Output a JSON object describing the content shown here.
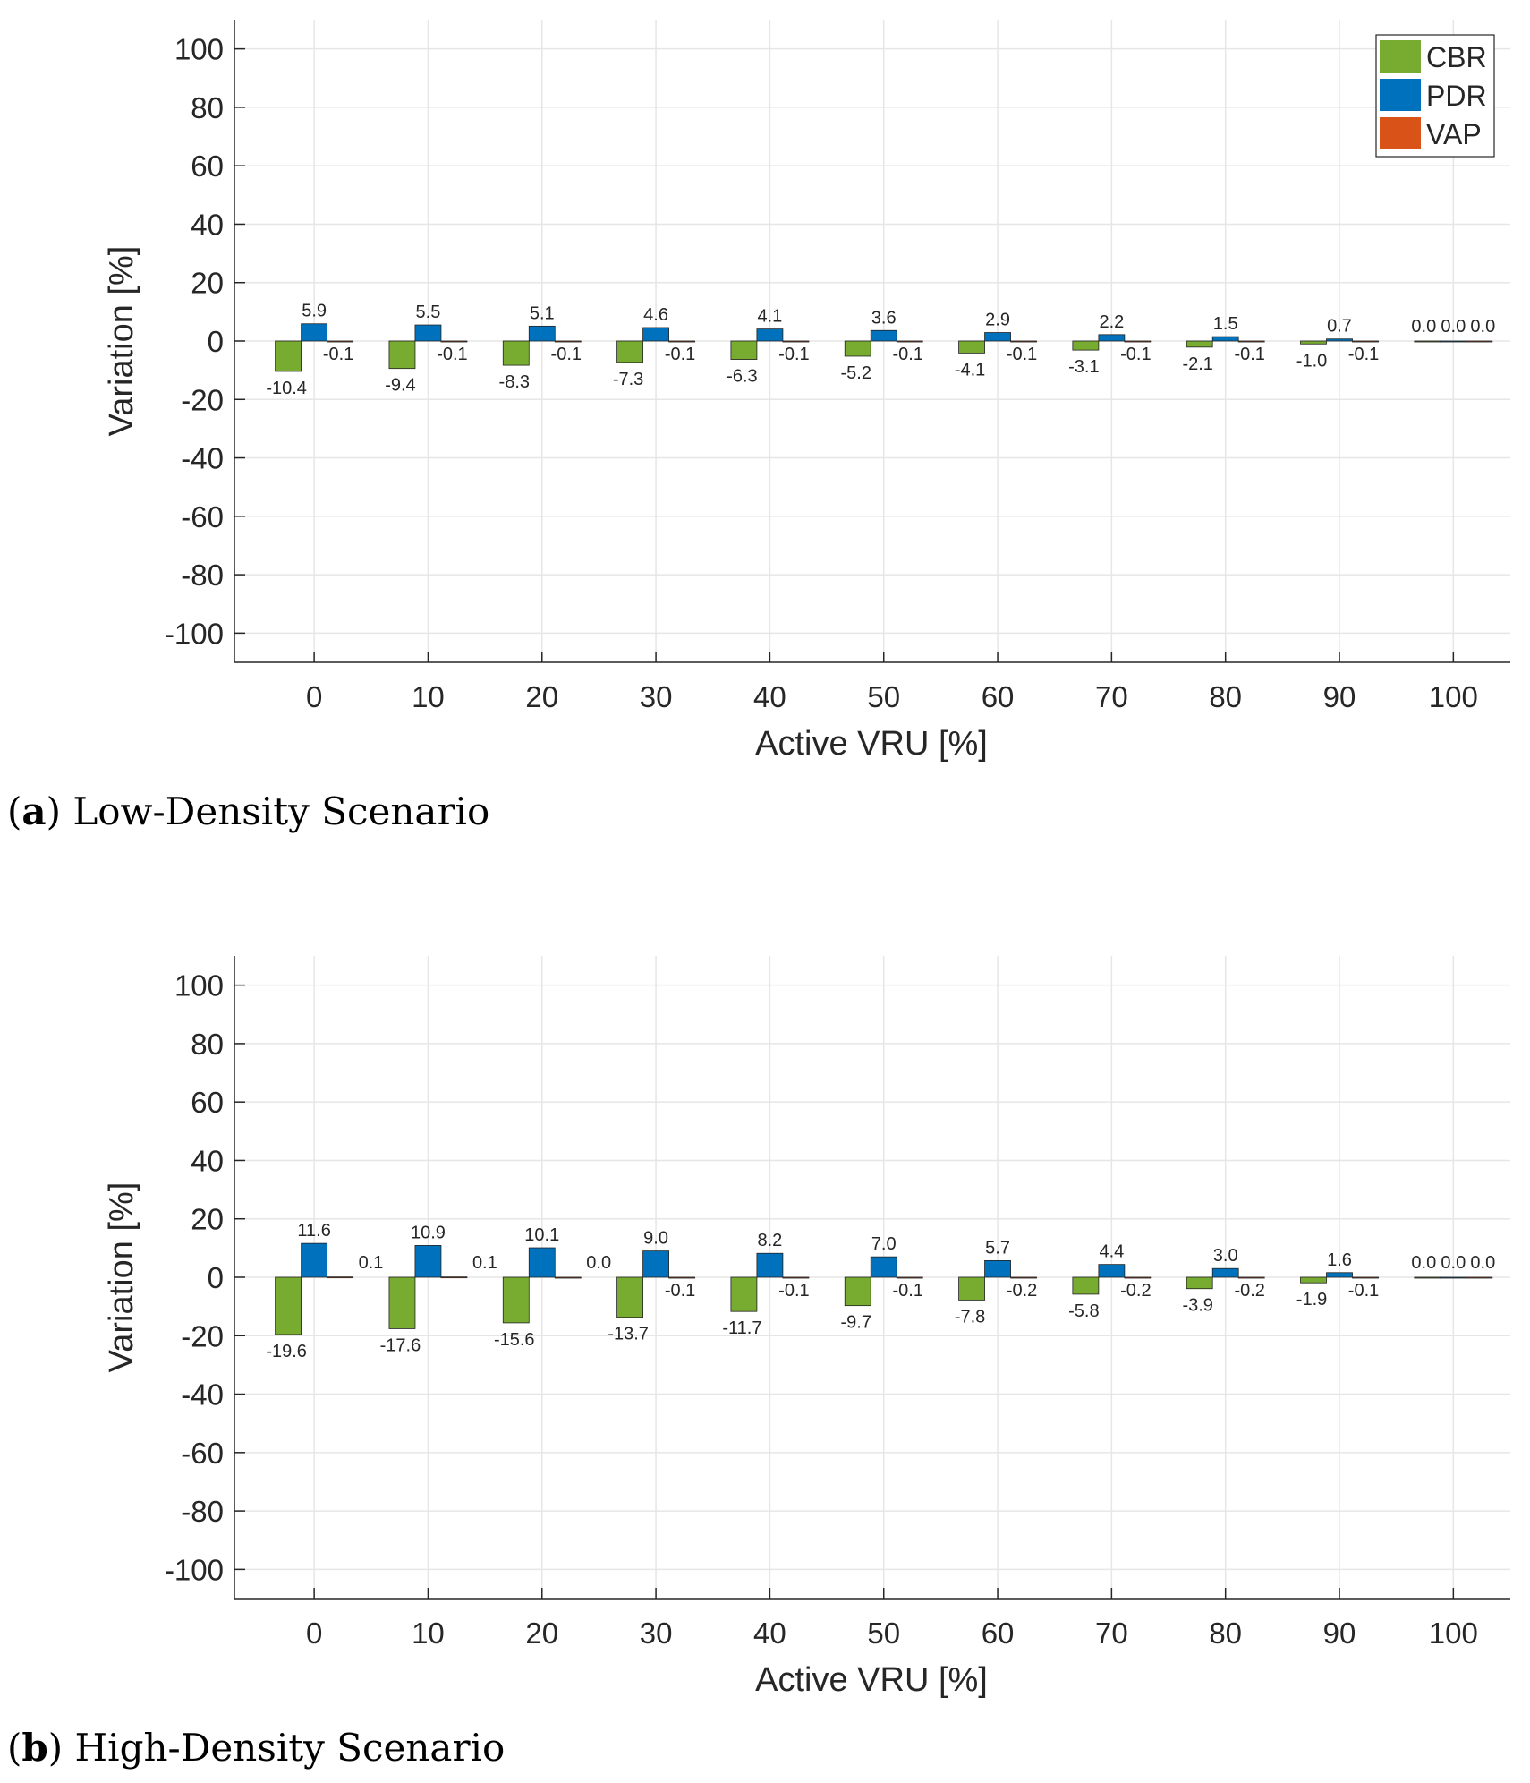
{
  "chart_data": [
    {
      "type": "bar",
      "caption_letter": "a",
      "caption_text": "Low-Density Scenario",
      "xlabel": "Active VRU [%]",
      "ylabel": "Variation [%]",
      "ylim": [
        -110,
        110
      ],
      "yticks": [
        100,
        80,
        60,
        40,
        20,
        0,
        -20,
        -40,
        -60,
        -80,
        -100
      ],
      "categories": [
        "0",
        "10",
        "20",
        "30",
        "40",
        "50",
        "60",
        "70",
        "80",
        "90",
        "100"
      ],
      "grid": true,
      "legend_position": "top-right",
      "series": [
        {
          "name": "CBR",
          "color": "#77ac30",
          "values": [
            -10.4,
            -9.4,
            -8.3,
            -7.3,
            -6.3,
            -5.2,
            -4.1,
            -3.1,
            -2.1,
            -1.0,
            0.0
          ],
          "labels": [
            "-10.4",
            "-9.4",
            "-8.3",
            "-7.3",
            "-6.3",
            "-5.2",
            "-4.1",
            "-3.1",
            "-2.1",
            "-1.0",
            "0.0"
          ]
        },
        {
          "name": "PDR",
          "color": "#0072bd",
          "values": [
            5.9,
            5.5,
            5.1,
            4.6,
            4.1,
            3.6,
            2.9,
            2.2,
            1.5,
            0.7,
            0.0
          ],
          "labels": [
            "5.9",
            "5.5",
            "5.1",
            "4.6",
            "4.1",
            "3.6",
            "2.9",
            "2.2",
            "1.5",
            "0.7",
            "0.0"
          ]
        },
        {
          "name": "VAP",
          "color": "#d95319",
          "values": [
            -0.1,
            -0.1,
            -0.1,
            -0.1,
            -0.1,
            -0.1,
            -0.1,
            -0.1,
            -0.1,
            -0.1,
            0.0
          ],
          "labels": [
            "-0.1",
            "-0.1",
            "-0.1",
            "-0.1",
            "-0.1",
            "-0.1",
            "-0.1",
            "-0.1",
            "-0.1",
            "-0.1",
            "0.0"
          ]
        }
      ]
    },
    {
      "type": "bar",
      "caption_letter": "b",
      "caption_text": "High-Density Scenario",
      "xlabel": "Active VRU [%]",
      "ylabel": "Variation [%]",
      "ylim": [
        -110,
        110
      ],
      "yticks": [
        100,
        80,
        60,
        40,
        20,
        0,
        -20,
        -40,
        -60,
        -80,
        -100
      ],
      "categories": [
        "0",
        "10",
        "20",
        "30",
        "40",
        "50",
        "60",
        "70",
        "80",
        "90",
        "100"
      ],
      "grid": true,
      "legend_position": "none",
      "series": [
        {
          "name": "CBR",
          "color": "#77ac30",
          "values": [
            -19.6,
            -17.6,
            -15.6,
            -13.7,
            -11.7,
            -9.7,
            -7.8,
            -5.8,
            -3.9,
            -1.9,
            0.0
          ],
          "labels": [
            "-19.6",
            "-17.6",
            "-15.6",
            "-13.7",
            "-11.7",
            "-9.7",
            "-7.8",
            "-5.8",
            "-3.9",
            "-1.9",
            "0.0"
          ]
        },
        {
          "name": "PDR",
          "color": "#0072bd",
          "values": [
            11.6,
            10.9,
            10.1,
            9.0,
            8.2,
            7.0,
            5.7,
            4.4,
            3.0,
            1.6,
            0.0
          ],
          "labels": [
            "11.6",
            "10.9",
            "10.1",
            "9.0",
            "8.2",
            "7.0",
            "5.7",
            "4.4",
            "3.0",
            "1.6",
            "0.0"
          ]
        },
        {
          "name": "VAP",
          "color": "#d95319",
          "values": [
            0.1,
            0.1,
            0.0,
            -0.1,
            -0.1,
            -0.1,
            -0.2,
            -0.2,
            -0.2,
            -0.1,
            0.0
          ],
          "labels": [
            "0.1",
            "0.1",
            "0.0",
            "-0.1",
            "-0.1",
            "-0.1",
            "-0.2",
            "-0.2",
            "-0.2",
            "-0.1",
            "0.0"
          ]
        }
      ]
    }
  ]
}
